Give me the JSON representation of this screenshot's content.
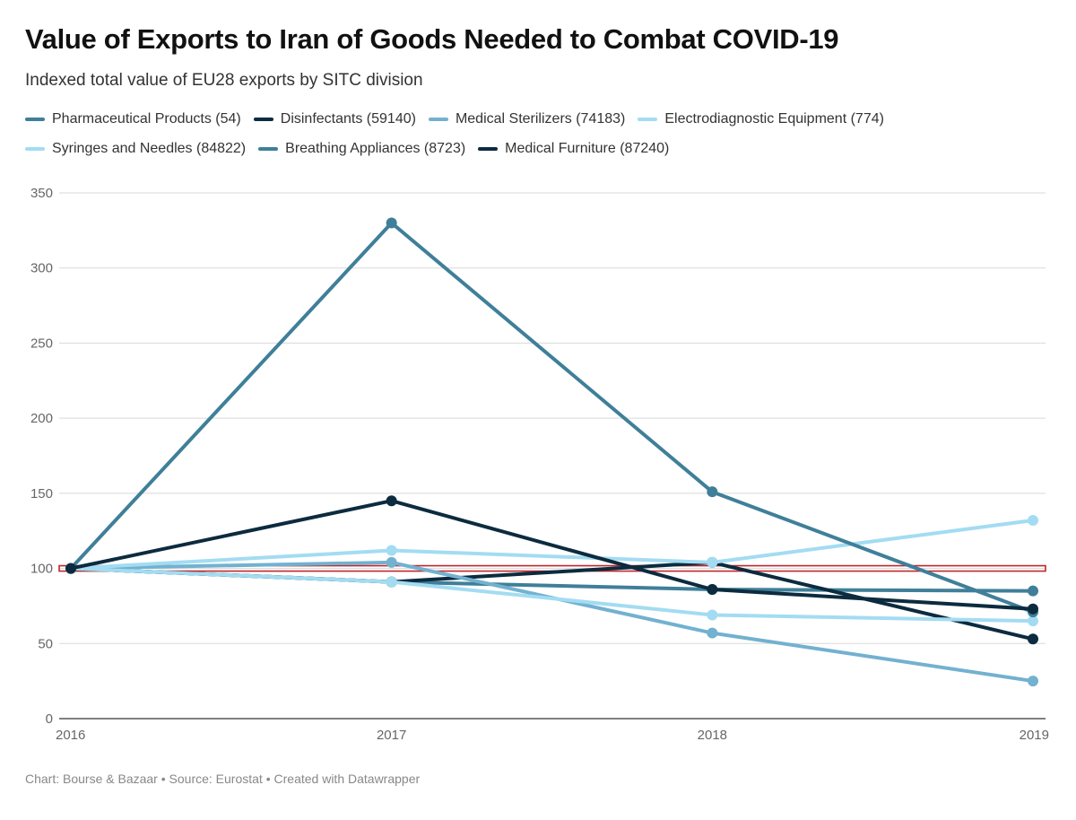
{
  "title": "Value of Exports to Iran of Goods Needed to Combat COVID-19",
  "subtitle": "Indexed total value of EU28 exports by SITC division",
  "footer": {
    "chart_by": "Chart: Bourse & Bazaar",
    "source": "Source: Eurostat",
    "created_with": "Created with Datawrapper",
    "separator": "•"
  },
  "reference_line": {
    "value": 100,
    "color": "#c0272d"
  },
  "chart_data": {
    "type": "line",
    "x": [
      "2016",
      "2017",
      "2018",
      "2019"
    ],
    "ylim": [
      0,
      350
    ],
    "yticks": [
      0,
      50,
      100,
      150,
      200,
      250,
      300,
      350
    ],
    "grid": true,
    "legend_placement": "top",
    "series": [
      {
        "name": "Pharmaceutical Products (54)",
        "color": "#3f7f99",
        "values": [
          100,
          91,
          86,
          85
        ]
      },
      {
        "name": "Disinfectants (59140)",
        "color": "#0c2b3f",
        "values": [
          100,
          91,
          104,
          53
        ]
      },
      {
        "name": "Medical Sterilizers (74183)",
        "color": "#72b1d0",
        "values": [
          100,
          104,
          57,
          25
        ]
      },
      {
        "name": "Electrodiagnostic Equipment (774)",
        "color": "#a3dcf2",
        "values": [
          100,
          112,
          104,
          132
        ]
      },
      {
        "name": "Syringes and Needles (84822)",
        "color": "#a3dcf2",
        "values": [
          100,
          91,
          69,
          65
        ]
      },
      {
        "name": "Breathing Appliances (8723)",
        "color": "#3f7f99",
        "values": [
          100,
          330,
          151,
          71
        ]
      },
      {
        "name": "Medical Furniture (87240)",
        "color": "#0c2b3f",
        "values": [
          100,
          145,
          86,
          73
        ]
      }
    ]
  }
}
